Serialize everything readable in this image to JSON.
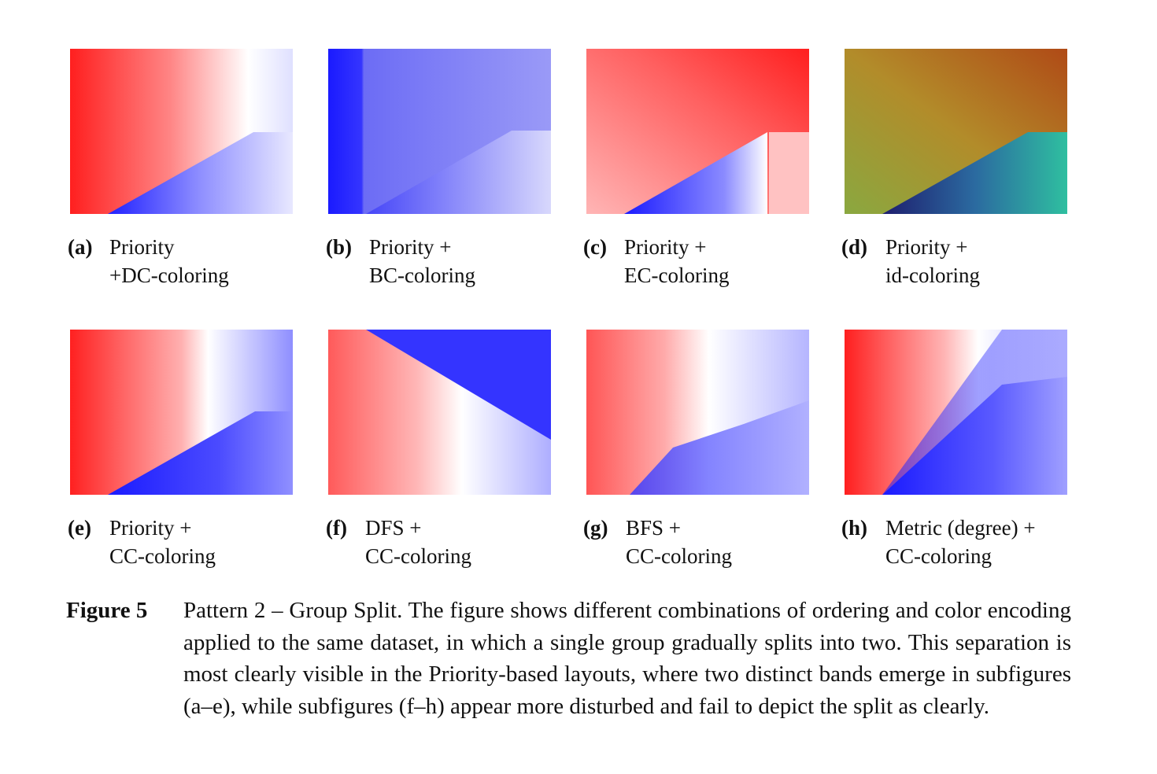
{
  "subfigures": [
    {
      "label": "(a)",
      "line1": "Priority",
      "line2": "+DC-coloring"
    },
    {
      "label": "(b)",
      "line1": "Priority +",
      "line2": "BC-coloring"
    },
    {
      "label": "(c)",
      "line1": "Priority +",
      "line2": "EC-coloring"
    },
    {
      "label": "(d)",
      "line1": "Priority +",
      "line2": "id-coloring"
    },
    {
      "label": "(e)",
      "line1": "Priority +",
      "line2": "CC-coloring"
    },
    {
      "label": "(f)",
      "line1": "DFS +",
      "line2": "CC-coloring"
    },
    {
      "label": "(g)",
      "line1": "BFS +",
      "line2": "CC-coloring"
    },
    {
      "label": "(h)",
      "line1": "Metric (degree) +",
      "line2": "CC-coloring"
    }
  ],
  "figure_caption": {
    "label": "Figure 5",
    "text": "Pattern 2 – Group Split. The figure shows different combinations of ordering and color encoding applied to the same dataset, in which a single group gradually splits into two. This separation is most clearly visible in the Priority-based layouts, where two distinct bands emerge in subfigures (a–e), while subfigures (f–h) appear more disturbed and fail to depict the split as clearly."
  },
  "colors": {
    "red": "#ff1a1a",
    "blue": "#1a1aff",
    "white": "#ffffff"
  }
}
